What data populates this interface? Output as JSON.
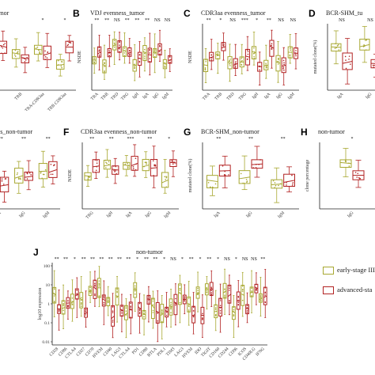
{
  "colors": {
    "early": "#a8a832",
    "advanced": "#b22222",
    "axis": "#222222"
  },
  "legend": [
    {
      "label": "early-stage III",
      "color": "#a8a832"
    },
    {
      "label": "advanced-sta",
      "color": "#b22222"
    }
  ],
  "chart_data": [
    {
      "id": "A",
      "type": "box",
      "letter": "",
      "title": "ss_tumor",
      "categories": [
        "TRA",
        "TRB",
        "TRA-CDR3aa",
        "TRB CDR3aa"
      ],
      "sig": [
        "",
        "",
        "*",
        "*"
      ]
    },
    {
      "id": "B",
      "type": "box",
      "letter": "B",
      "title": "VDJ evenness_tumor",
      "ylabel": "NSDE",
      "categories": [
        "TRA",
        "TRB",
        "TRD",
        "TRG",
        "IgH",
        "IgA",
        "IgG",
        "IgM"
      ],
      "sig": [
        "**",
        "**",
        "NS",
        "**",
        "**",
        "**",
        "NS",
        "NS"
      ]
    },
    {
      "id": "C",
      "type": "box",
      "letter": "C",
      "title": "CDR3aa evenness_tumor",
      "ylabel": "NSDE",
      "categories": [
        "TRA",
        "TRB",
        "TRD",
        "TRG",
        "IgH",
        "IgA",
        "IgG",
        "IgM"
      ],
      "sig": [
        "**",
        "*",
        "NS",
        "***",
        "*",
        "**",
        "NS",
        "NS"
      ]
    },
    {
      "id": "D",
      "type": "box",
      "letter": "D",
      "title": "BCR-SHM_tu",
      "ylabel": "mutated clone(%)",
      "categories": [
        "IgA",
        "IgG"
      ],
      "sig": [
        "NS",
        "NS"
      ]
    },
    {
      "id": "E",
      "type": "box",
      "letter": "",
      "title": "enness_non-tumor",
      "categories": [
        "IgA",
        "IgG",
        "IgM"
      ],
      "sig": [
        "***",
        "**",
        "**"
      ]
    },
    {
      "id": "F",
      "type": "box",
      "letter": "F",
      "title": "CDR3aa evenness_non-tumor",
      "ylabel": "NSDE",
      "categories": [
        "TRG",
        "IgH",
        "IgA",
        "IgG",
        "IgM"
      ],
      "sig": [
        "**",
        "**",
        "***",
        "**",
        "*"
      ]
    },
    {
      "id": "G",
      "type": "box",
      "letter": "G",
      "title": "BCR-SHM_non-tumor",
      "ylabel": "mutated clone(%)",
      "categories": [
        "IgA",
        "IgG",
        "IgM"
      ],
      "sig": [
        "**",
        "**",
        "**"
      ]
    },
    {
      "id": "H",
      "type": "box",
      "letter": "H",
      "title": "non-tumor",
      "ylabel": "clone percentage",
      "categories": [
        "IgG"
      ],
      "sig": [
        "*"
      ]
    },
    {
      "id": "J",
      "type": "box",
      "letter": "J",
      "title": "non-tumor",
      "ylabel": "log10 expression",
      "yticks": [
        "100",
        "10",
        "1",
        "0.1",
        "0.01"
      ],
      "categories": [
        "CD28",
        "CD86",
        "CTLA4",
        "CD27",
        "CD70",
        "HVEM",
        "CD40",
        "LAG3",
        "CTLA4",
        "PD1",
        "CD80",
        "BTLA",
        "PDL1",
        "TIM3",
        "LAG3",
        "HVEM",
        "IDO",
        "TIGIT",
        "CD160",
        "CD244",
        "CD96",
        "ICOS",
        "CD40LG",
        "IFNG"
      ],
      "sig": [
        "**",
        "**",
        "*",
        "**",
        "**",
        "**",
        "**",
        "**",
        "**",
        "*",
        "**",
        "**",
        "*",
        "NS",
        "*",
        "**",
        "*",
        "**",
        "*",
        "NS",
        "*",
        "NS",
        "NS",
        "**"
      ]
    }
  ]
}
